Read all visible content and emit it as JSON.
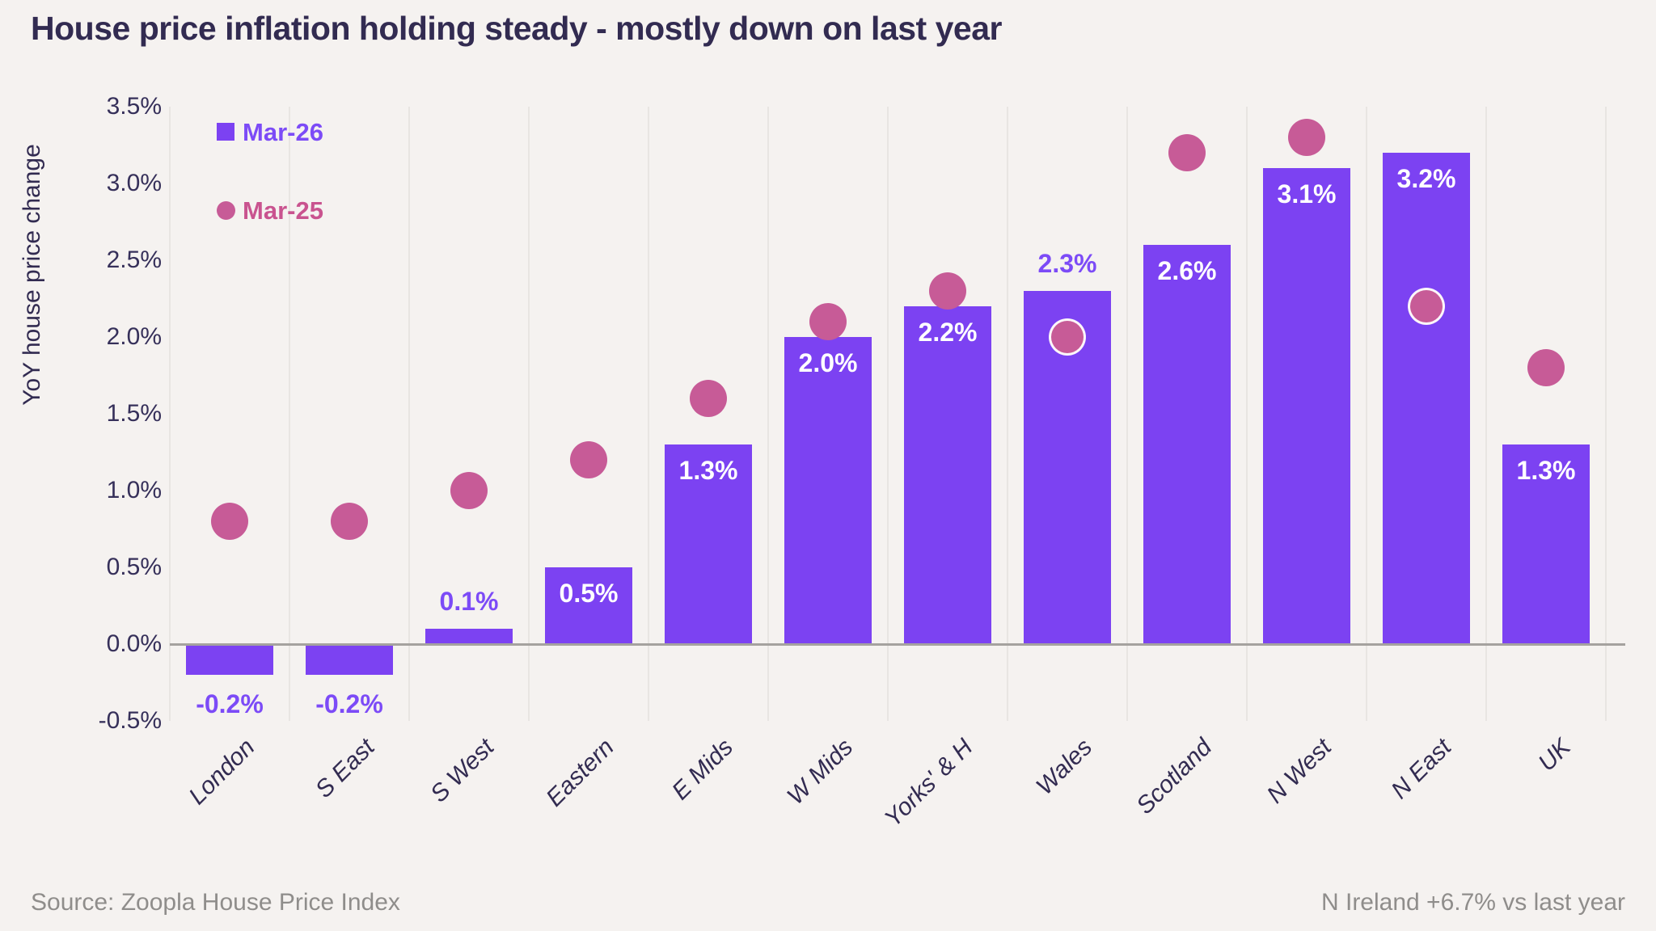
{
  "title": "House price inflation holding steady - mostly down on last year",
  "y_axis_title": "YoY house price change",
  "legend": {
    "items": [
      {
        "label": "Mar-26",
        "marker": "square"
      },
      {
        "label": "Mar-25",
        "marker": "circle"
      }
    ]
  },
  "footer": {
    "source": "Source: Zoopla House Price Index",
    "note": "N Ireland +6.7% vs last year"
  },
  "chart_data": {
    "type": "bar",
    "title": "House price inflation holding steady - mostly down on last year",
    "xlabel": "",
    "ylabel": "YoY house price change",
    "ylim": [
      -0.5,
      3.5
    ],
    "yticks": [
      "3.5%",
      "3.0%",
      "2.5%",
      "2.0%",
      "1.5%",
      "1.0%",
      "0.5%",
      "0.0%",
      "-0.5%"
    ],
    "ytick_values": [
      3.5,
      3.0,
      2.5,
      2.0,
      1.5,
      1.0,
      0.5,
      0.0,
      -0.5
    ],
    "grid": "vertical-only",
    "legend_position": "top-left",
    "categories": [
      "London",
      "S East",
      "S West",
      "Eastern",
      "E Mids",
      "W Mids",
      "Yorks' & H",
      "Wales",
      "Scotland",
      "N West",
      "N East",
      "UK"
    ],
    "series": [
      {
        "name": "Mar-26",
        "type": "bar",
        "color": "#7C42F2",
        "values": [
          -0.2,
          -0.2,
          0.1,
          0.5,
          1.3,
          2.0,
          2.2,
          2.3,
          2.6,
          3.1,
          3.2,
          1.3
        ],
        "labels": [
          "-0.2%",
          "-0.2%",
          "0.1%",
          "0.5%",
          "1.3%",
          "2.0%",
          "2.2%",
          "2.3%",
          "2.6%",
          "3.1%",
          "3.2%",
          "1.3%"
        ],
        "label_placement": [
          "below",
          "below",
          "above",
          "inside",
          "inside",
          "inside",
          "inside",
          "above",
          "inside",
          "inside",
          "inside",
          "inside"
        ]
      },
      {
        "name": "Mar-25",
        "type": "scatter",
        "color": "#C75B97",
        "values": [
          0.8,
          0.8,
          1.0,
          1.2,
          1.6,
          2.1,
          2.3,
          2.0,
          3.2,
          3.3,
          2.2,
          1.8
        ]
      }
    ]
  },
  "style": {
    "background": "#F5F2F0",
    "bar_color": "#7C42F2",
    "dot_color": "#C75B97",
    "title_color": "#322B51",
    "axis_text_color": "#36305A",
    "grid_color": "#E8E5E2",
    "zero_line_color": "#A5A29F",
    "outside_label_color": "#7C4BF7",
    "inside_label_color": "#FFFFFF",
    "legend_pink_text": "#C9538F",
    "footer_color": "#8F8D8B"
  }
}
